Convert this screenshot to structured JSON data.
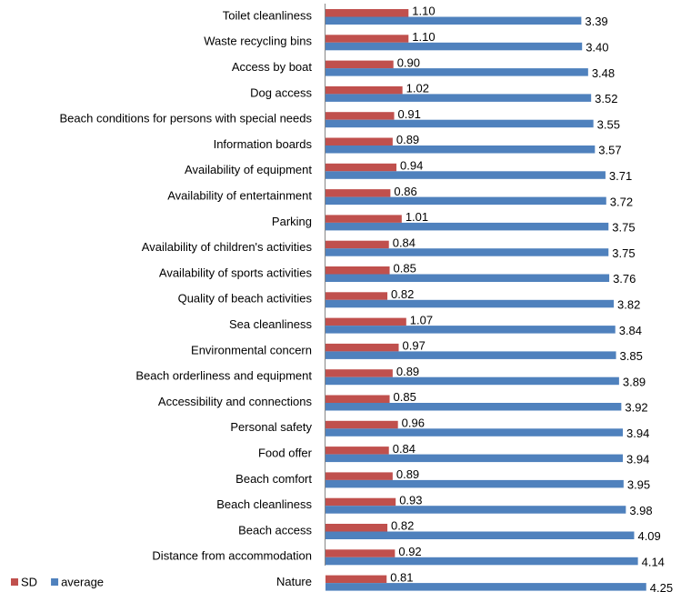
{
  "chart_data": {
    "type": "hbar",
    "categories": [
      "Toilet cleanliness",
      "Waste recycling bins",
      "Access by boat",
      "Dog access",
      "Beach conditions for persons with special needs",
      "Information boards",
      "Availability of equipment",
      "Availability of entertainment",
      "Parking",
      "Availability of children's activities",
      "Availability of sports activities",
      "Quality of beach activities",
      "Sea cleanliness",
      "Environmental concern",
      "Beach orderliness and equipment",
      "Accessibility and connections",
      "Personal safety",
      "Food offer",
      "Beach comfort",
      "Beach cleanliness",
      "Beach access",
      "Distance from accommodation",
      "Nature"
    ],
    "series": [
      {
        "name": "SD",
        "color": "#c0504d",
        "values": [
          1.1,
          1.1,
          0.9,
          1.02,
          0.91,
          0.89,
          0.94,
          0.86,
          1.01,
          0.84,
          0.85,
          0.82,
          1.07,
          0.97,
          0.89,
          0.85,
          0.96,
          0.84,
          0.89,
          0.93,
          0.82,
          0.92,
          0.81
        ],
        "value_labels": [
          "1.10",
          "1.10",
          "0.90",
          "1.02",
          "0.91",
          "0.89",
          "0.94",
          "0.86",
          "1.01",
          "0.84",
          "0.85",
          "0.82",
          "1.07",
          "0.97",
          "0.89",
          "0.85",
          "0.96",
          "0.84",
          "0.89",
          "0.93",
          "0.82",
          "0.92",
          "0.81"
        ]
      },
      {
        "name": "average",
        "color": "#4f81bd",
        "values": [
          3.39,
          3.4,
          3.48,
          3.52,
          3.55,
          3.57,
          3.71,
          3.72,
          3.75,
          3.75,
          3.76,
          3.82,
          3.84,
          3.85,
          3.89,
          3.92,
          3.94,
          3.94,
          3.95,
          3.98,
          4.09,
          4.14,
          4.25
        ],
        "value_labels": [
          "3.39",
          "3.40",
          "3.48",
          "3.52",
          "3.55",
          "3.57",
          "3.71",
          "3.72",
          "3.75",
          "3.75",
          "3.76",
          "3.82",
          "3.84",
          "3.85",
          "3.89",
          "3.92",
          "3.94",
          "3.94",
          "3.95",
          "3.98",
          "4.09",
          "4.14",
          "4.25"
        ]
      }
    ],
    "legend": "bottom-left"
  }
}
